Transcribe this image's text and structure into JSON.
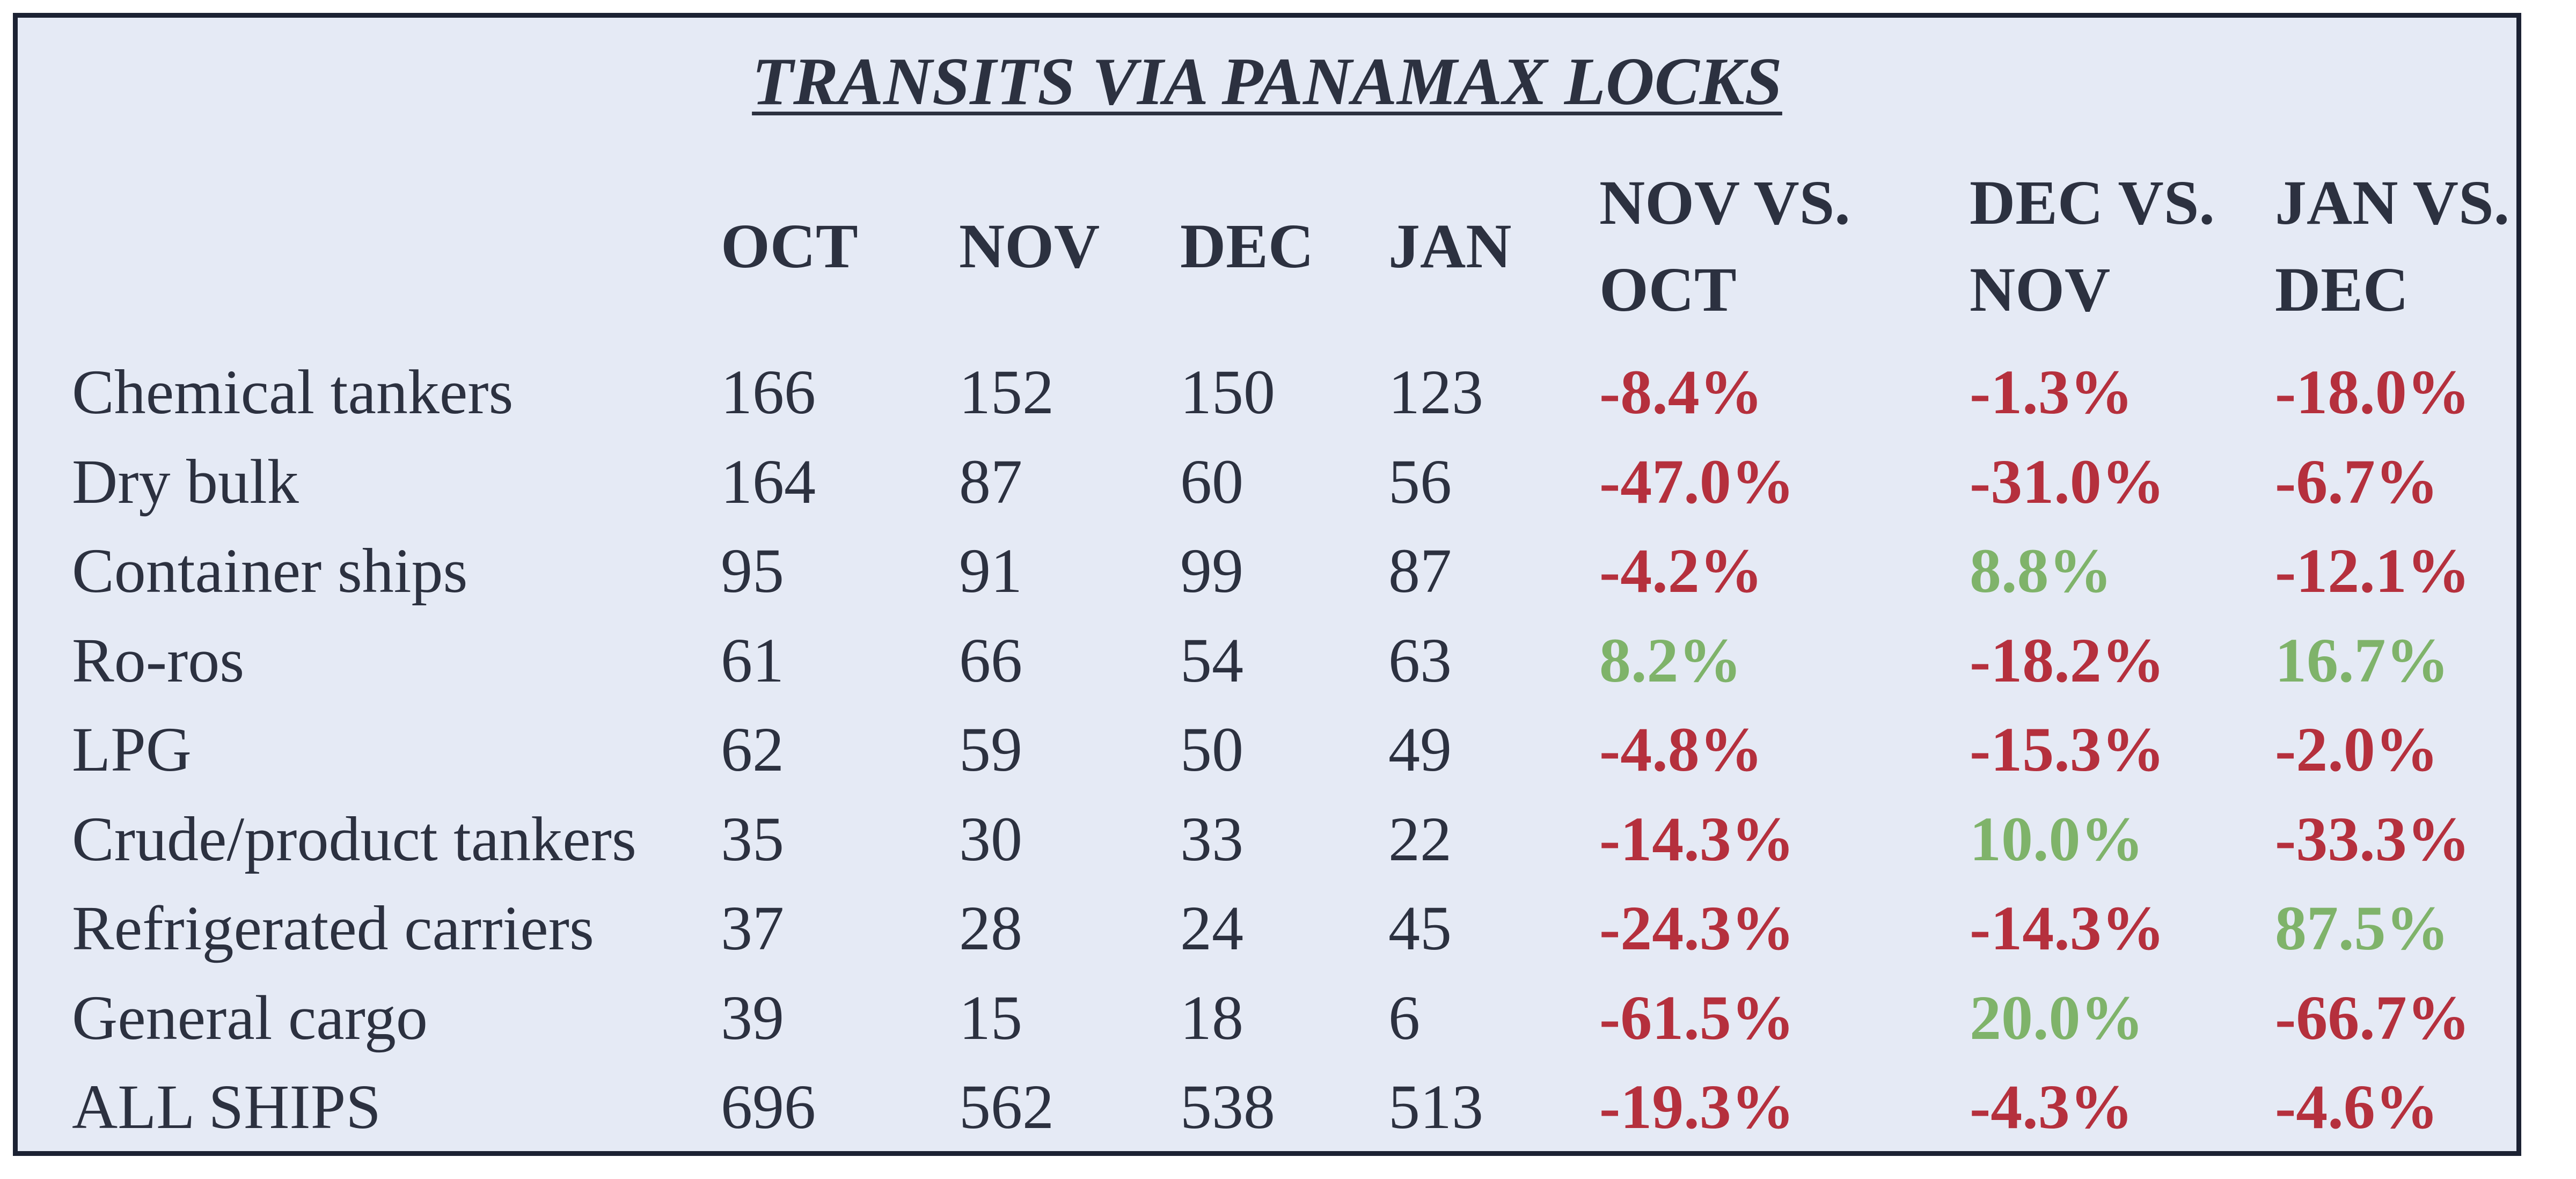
{
  "title": "TRANSITS VIA PANAMAX LOCKS",
  "columns": {
    "oct": "OCT",
    "nov": "NOV",
    "dec": "DEC",
    "jan": "JAN",
    "nov_vs_oct": [
      "NOV VS.",
      "OCT"
    ],
    "dec_vs_nov": [
      "DEC VS.",
      "NOV"
    ],
    "jan_vs_dec": [
      "JAN VS.",
      "DEC"
    ]
  },
  "colors": {
    "negative": "#b5303d",
    "positive": "#7fb36a",
    "text": "#2c3140",
    "background": "#e5eaf5",
    "border": "#1c2233"
  },
  "rows": [
    {
      "label": "Chemical tankers",
      "oct": "166",
      "nov": "152",
      "dec": "150",
      "jan": "123",
      "nov_vs_oct": "-8.4%",
      "dec_vs_nov": "-1.3%",
      "jan_vs_dec": "-18.0%"
    },
    {
      "label": "Dry bulk",
      "oct": "164",
      "nov": "87",
      "dec": "60",
      "jan": "56",
      "nov_vs_oct": "-47.0%",
      "dec_vs_nov": "-31.0%",
      "jan_vs_dec": "-6.7%"
    },
    {
      "label": "Container ships",
      "oct": "95",
      "nov": "91",
      "dec": "99",
      "jan": "87",
      "nov_vs_oct": "-4.2%",
      "dec_vs_nov": "8.8%",
      "jan_vs_dec": "-12.1%"
    },
    {
      "label": "Ro-ros",
      "oct": "61",
      "nov": "66",
      "dec": "54",
      "jan": "63",
      "nov_vs_oct": "8.2%",
      "dec_vs_nov": "-18.2%",
      "jan_vs_dec": "16.7%"
    },
    {
      "label": "LPG",
      "oct": "62",
      "nov": "59",
      "dec": "50",
      "jan": "49",
      "nov_vs_oct": "-4.8%",
      "dec_vs_nov": "-15.3%",
      "jan_vs_dec": "-2.0%"
    },
    {
      "label": "Crude/product tankers",
      "oct": "35",
      "nov": "30",
      "dec": "33",
      "jan": "22",
      "nov_vs_oct": "-14.3%",
      "dec_vs_nov": "10.0%",
      "jan_vs_dec": "-33.3%"
    },
    {
      "label": "Refrigerated carriers",
      "oct": "37",
      "nov": "28",
      "dec": "24",
      "jan": "45",
      "nov_vs_oct": "-24.3%",
      "dec_vs_nov": "-14.3%",
      "jan_vs_dec": "87.5%"
    },
    {
      "label": "General cargo",
      "oct": "39",
      "nov": "15",
      "dec": "18",
      "jan": "6",
      "nov_vs_oct": "-61.5%",
      "dec_vs_nov": "20.0%",
      "jan_vs_dec": "-66.7%"
    },
    {
      "label": "ALL SHIPS",
      "oct": "696",
      "nov": "562",
      "dec": "538",
      "jan": "513",
      "nov_vs_oct": "-19.3%",
      "dec_vs_nov": "-4.3%",
      "jan_vs_dec": "-4.6%"
    }
  ]
}
